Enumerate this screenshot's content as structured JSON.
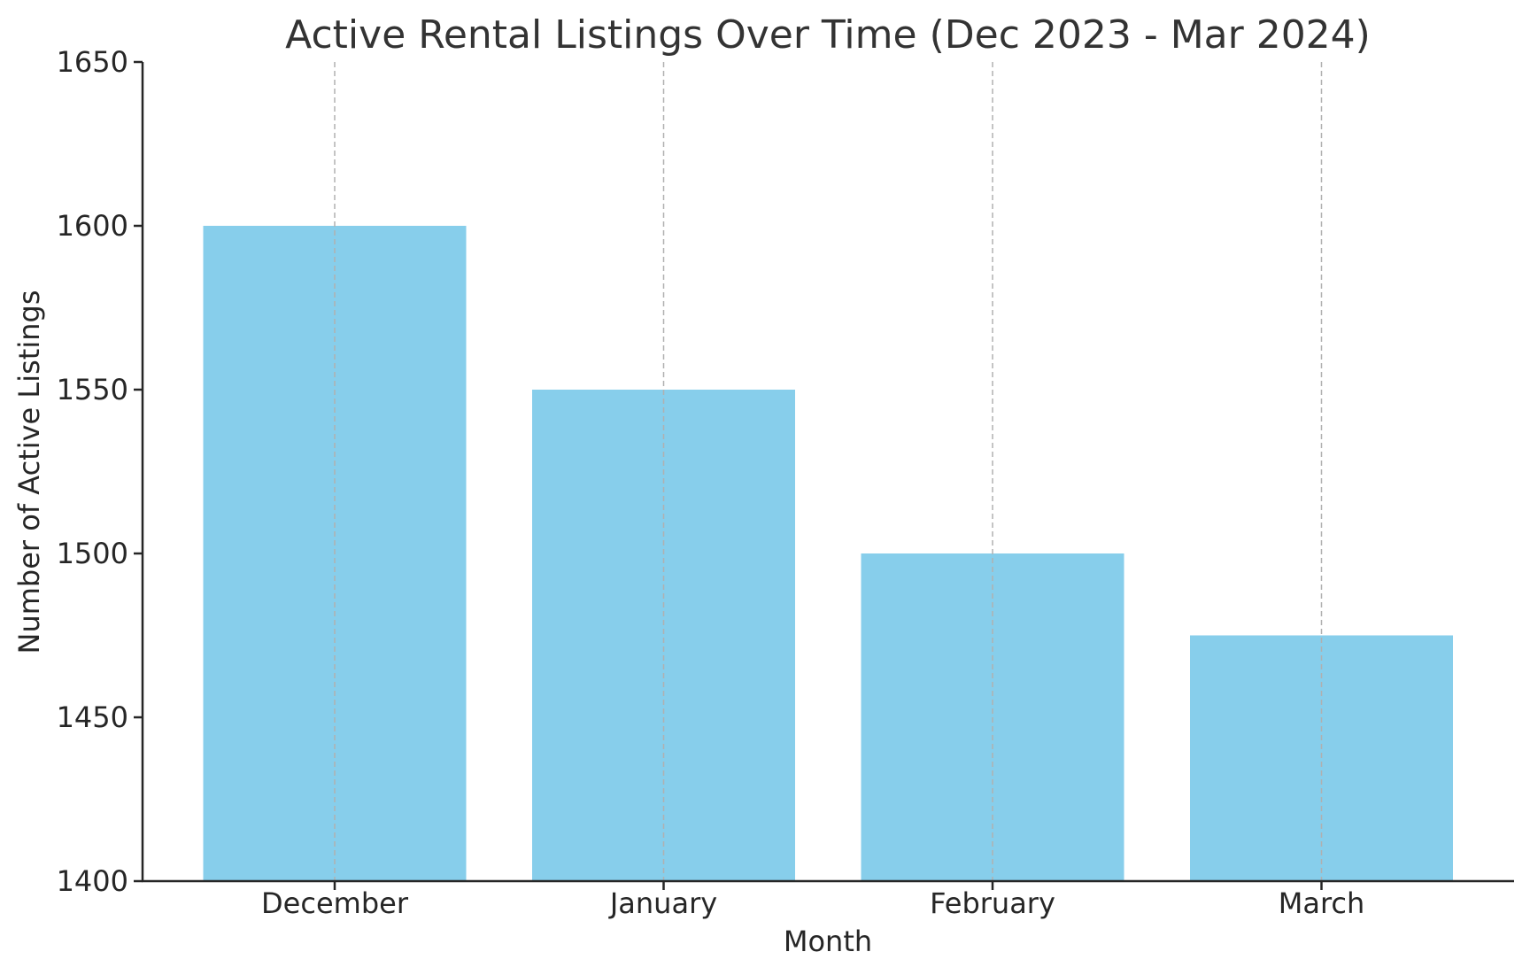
{
  "chart_data": {
    "type": "bar",
    "title": "Active Rental Listings Over Time (Dec 2023 - Mar 2024)",
    "xlabel": "Month",
    "ylabel": "Number of Active Listings",
    "categories": [
      "December",
      "January",
      "February",
      "March"
    ],
    "values": [
      1600,
      1550,
      1500,
      1475
    ],
    "ylim": [
      1400,
      1650
    ],
    "yticks": [
      1400,
      1450,
      1500,
      1550,
      1600,
      1650
    ],
    "bar_color": "#87CEEB",
    "grid": "x-axis dashed",
    "legend": "none"
  }
}
